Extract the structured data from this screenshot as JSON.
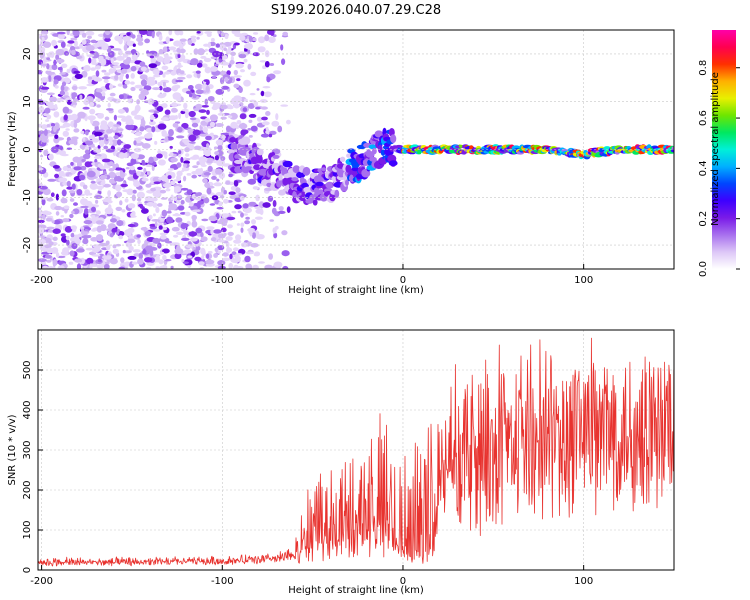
{
  "title": "S199.2026.040.07.29.C28",
  "chart_data": [
    {
      "type": "heatmap",
      "name": "spectrogram",
      "xlabel": "Height of straight line (km)",
      "ylabel": "Frequency (Hz)",
      "xlim": [
        -202,
        150
      ],
      "ylim": [
        -25,
        25
      ],
      "xticks": [
        -200,
        -100,
        0,
        100
      ],
      "yticks": [
        -20,
        -10,
        0,
        10,
        20
      ],
      "ridge": {
        "x": [
          -90,
          -80,
          -70,
          -60,
          -50,
          -40,
          -30,
          -20,
          -10,
          0,
          20,
          40,
          60,
          80,
          100,
          120,
          150
        ],
        "frequency": [
          -1,
          -3,
          -5,
          -7,
          -8,
          -7,
          -4,
          -2,
          1,
          0,
          0,
          0,
          0,
          0,
          -1,
          0,
          0
        ]
      },
      "colorbar": {
        "label": "Normalized spectral amplitude",
        "range": [
          0.0,
          0.95
        ],
        "ticks": [
          0.0,
          0.2,
          0.4,
          0.6,
          0.8
        ],
        "tick_labels": [
          "0.0",
          "0.2",
          "0.4",
          "0.6",
          "0.8"
        ],
        "colors": [
          "#ffffff",
          "#ddc7f7",
          "#a870ee",
          "#7a1be8",
          "#3d00ff",
          "#0045ff",
          "#00b0ff",
          "#00f0d8",
          "#00e860",
          "#6ee600",
          "#e8f000",
          "#ffb000",
          "#ff3000",
          "#ff0050",
          "#ff00a8"
        ]
      }
    },
    {
      "type": "line",
      "name": "snr",
      "xlabel": "Height of straight line (km)",
      "ylabel": "SNR (10 * v/v)",
      "xlim": [
        -202,
        150
      ],
      "ylim": [
        0,
        600
      ],
      "xticks": [
        -200,
        -100,
        0,
        100
      ],
      "yticks": [
        0,
        100,
        200,
        300,
        400,
        500
      ],
      "color": "#e8332f",
      "envelope": {
        "x": [
          -202,
          -150,
          -100,
          -70,
          -60,
          -50,
          -40,
          -30,
          -20,
          -10,
          0,
          10,
          17,
          20,
          30,
          40,
          50,
          60,
          80,
          100,
          120,
          150
        ],
        "base": [
          15,
          16,
          18,
          22,
          30,
          60,
          70,
          80,
          90,
          100,
          30,
          30,
          40,
          210,
          250,
          280,
          300,
          320,
          370,
          400,
          420,
          440
        ],
        "peak": [
          40,
          40,
          45,
          60,
          80,
          250,
          260,
          280,
          380,
          400,
          310,
          320,
          400,
          460,
          530,
          560,
          570,
          560,
          540,
          590,
          530,
          520
        ]
      }
    }
  ]
}
